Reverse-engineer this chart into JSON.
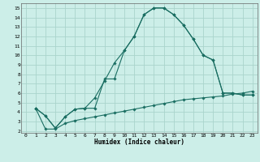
{
  "xlabel": "Humidex (Indice chaleur)",
  "bg_color": "#cceee8",
  "grid_color": "#aad4cc",
  "line_color": "#1a6e62",
  "xlim": [
    -0.5,
    23.5
  ],
  "ylim": [
    1.8,
    15.5
  ],
  "xticks": [
    0,
    1,
    2,
    3,
    4,
    5,
    6,
    7,
    8,
    9,
    10,
    11,
    12,
    13,
    14,
    15,
    16,
    17,
    18,
    19,
    20,
    21,
    22,
    23
  ],
  "yticks": [
    2,
    3,
    4,
    5,
    6,
    7,
    8,
    9,
    10,
    11,
    12,
    13,
    14,
    15
  ],
  "line1_x": [
    1,
    2,
    3,
    4,
    5,
    6,
    7,
    8,
    9,
    10,
    11,
    12,
    13,
    14,
    15,
    16,
    17,
    18,
    19,
    20,
    21,
    22,
    23
  ],
  "line1_y": [
    4.4,
    3.6,
    2.3,
    3.5,
    4.3,
    4.4,
    5.5,
    7.3,
    9.2,
    10.5,
    12.0,
    14.3,
    15.0,
    15.0,
    14.3,
    13.2,
    11.7,
    10.0,
    9.5,
    6.0,
    6.0,
    5.8,
    5.8
  ],
  "line2_x": [
    1,
    2,
    3,
    4,
    5,
    6,
    7,
    8,
    9,
    10,
    11,
    12,
    13,
    14,
    15,
    16,
    17,
    18,
    19,
    20,
    21,
    22,
    23
  ],
  "line2_y": [
    4.4,
    3.6,
    2.3,
    3.5,
    4.3,
    4.4,
    4.4,
    7.5,
    7.5,
    10.5,
    12.0,
    14.3,
    15.0,
    15.0,
    14.3,
    13.2,
    11.7,
    10.0,
    9.5,
    6.0,
    6.0,
    5.8,
    5.8
  ],
  "line3_x": [
    1,
    2,
    3,
    4,
    5,
    6,
    7,
    8,
    9,
    10,
    11,
    12,
    13,
    14,
    15,
    16,
    17,
    18,
    19,
    20,
    21,
    22,
    23
  ],
  "line3_y": [
    4.4,
    2.2,
    2.2,
    2.8,
    3.1,
    3.3,
    3.5,
    3.7,
    3.9,
    4.1,
    4.3,
    4.5,
    4.7,
    4.9,
    5.1,
    5.3,
    5.4,
    5.5,
    5.6,
    5.7,
    5.9,
    6.0,
    6.2
  ]
}
